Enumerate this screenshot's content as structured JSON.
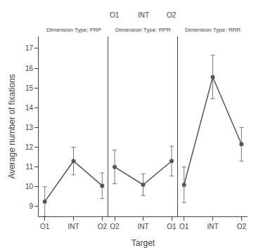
{
  "chart_data": [
    {
      "type": "line",
      "title": "Dimension Type: PRP",
      "categories": [
        "O1",
        "INT",
        "O2"
      ],
      "values": [
        9.25,
        11.3,
        10.05
      ],
      "error": [
        0.75,
        0.7,
        0.65
      ],
      "color": "#555555",
      "marker": "circle",
      "ylabel": "Average number of fixations",
      "ylim": [
        8.5,
        17.6
      ],
      "yticks": [
        9,
        10,
        11,
        12,
        13,
        14,
        15,
        16,
        17
      ],
      "grid": false
    },
    {
      "type": "line",
      "title": "Dimension Type: RPR",
      "categories": [
        "O2",
        "INT",
        "O1"
      ],
      "values": [
        11.0,
        10.1,
        11.3
      ],
      "error": [
        0.85,
        0.55,
        0.75
      ],
      "color": "#555555",
      "marker": "circle",
      "xlabel": "Target",
      "annotations": [
        "O1",
        "INT",
        "O2"
      ],
      "ylim": [
        8.5,
        17.6
      ],
      "yticks": [
        9,
        10,
        11,
        12,
        13,
        14,
        15,
        16,
        17
      ],
      "grid": false,
      "tick_labels": "x"
    },
    {
      "type": "line",
      "title": "Dimension Type: RRR",
      "categories": [
        "O1",
        "INT",
        "O2"
      ],
      "values": [
        10.1,
        15.55,
        12.15
      ],
      "error": [
        0.9,
        1.1,
        0.85
      ],
      "color": "#555555",
      "marker": "circle",
      "ylim": [
        8.5,
        17.6
      ],
      "yticks": [
        9,
        10,
        11,
        12,
        13,
        14,
        15,
        16,
        17
      ],
      "grid": false,
      "tick_labels": "x"
    }
  ]
}
